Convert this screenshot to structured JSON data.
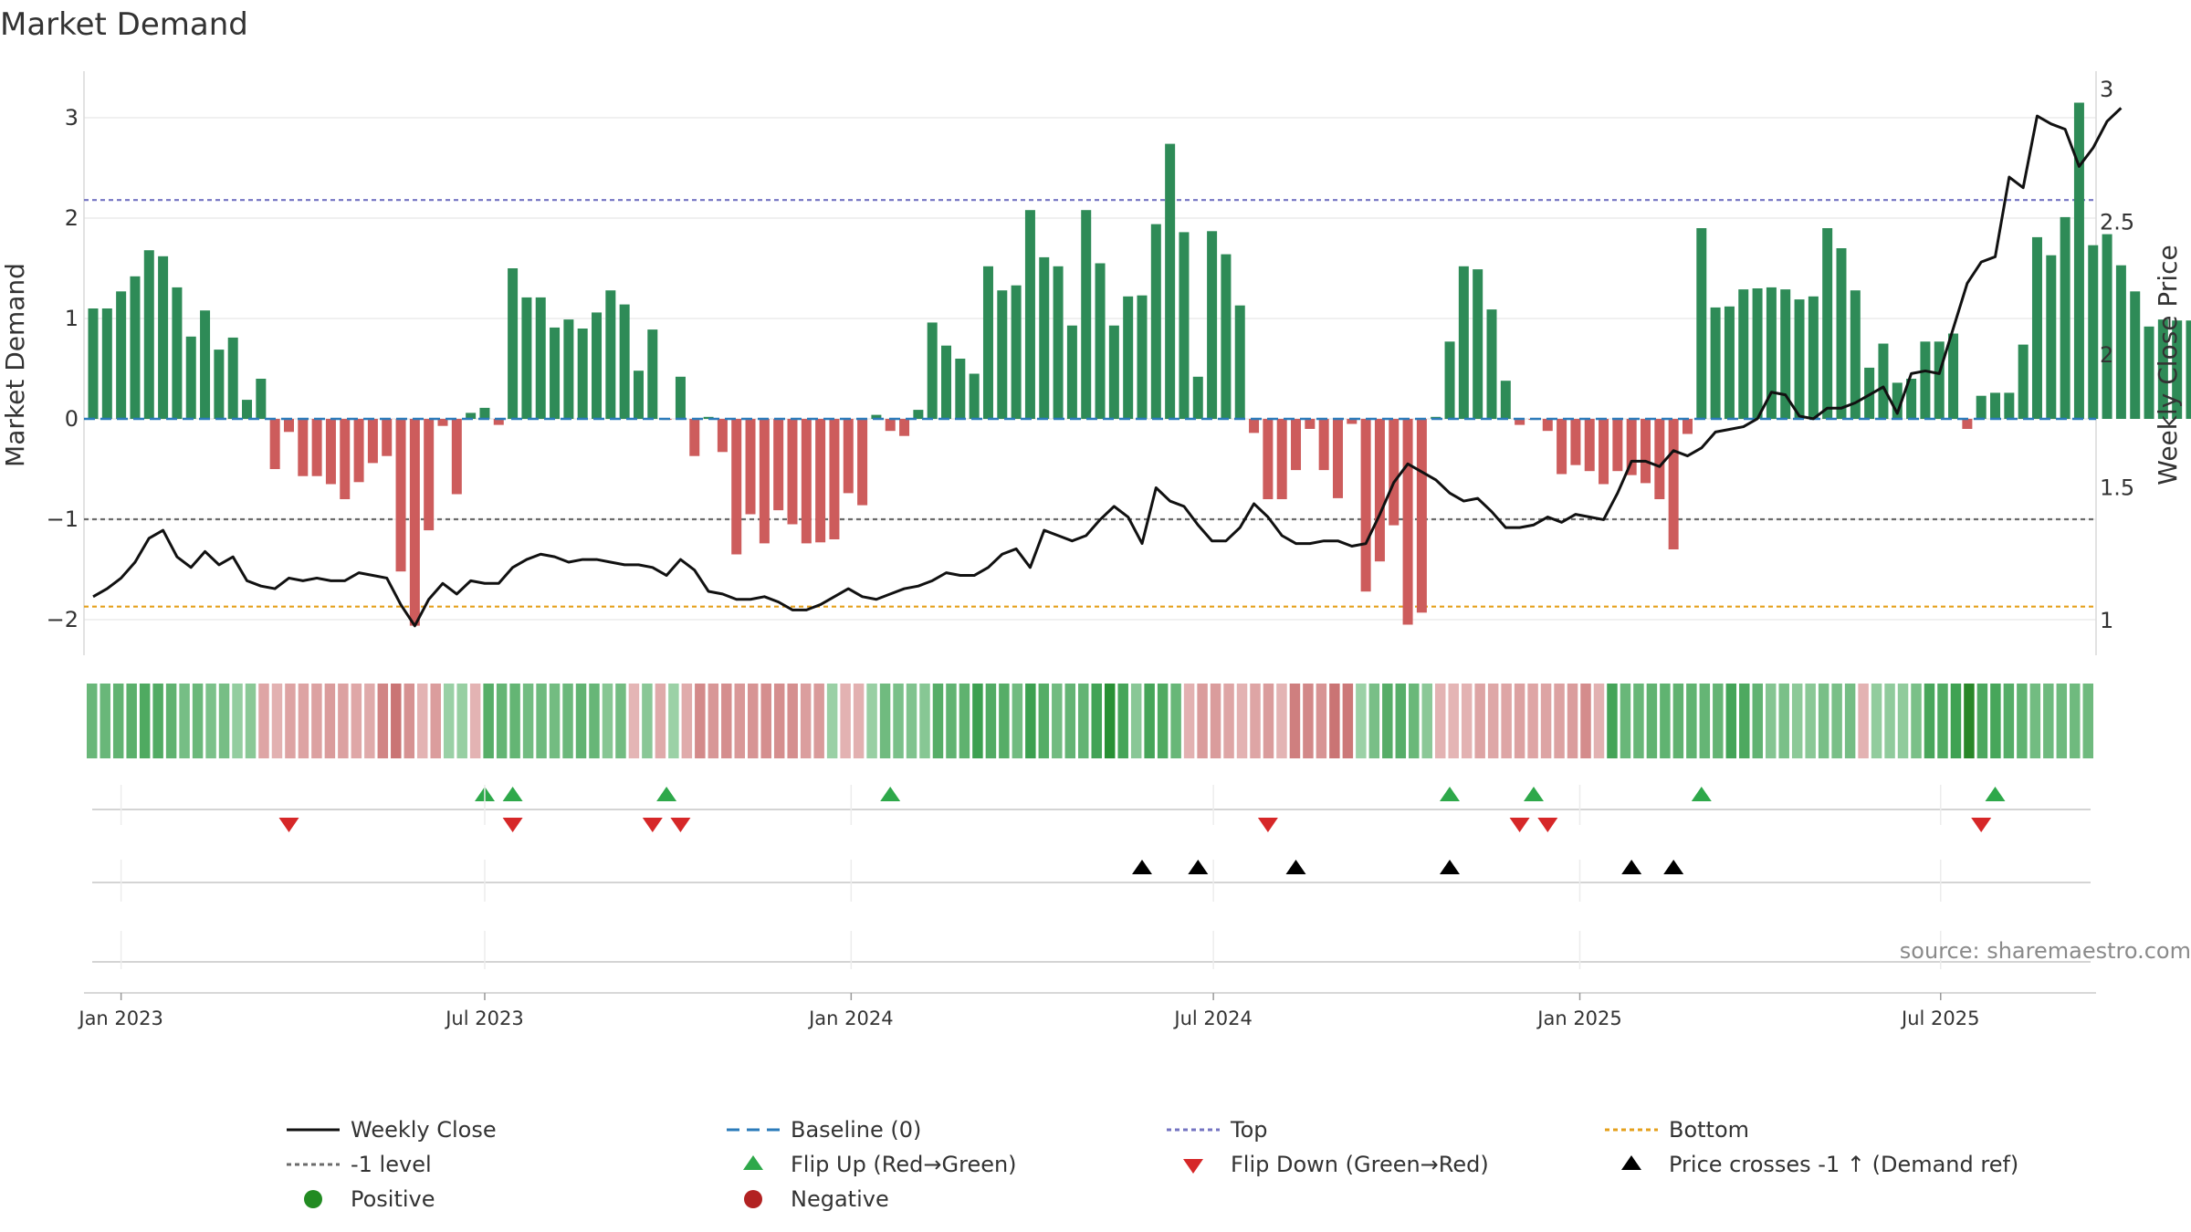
{
  "chart_data": {
    "type": "bar",
    "title": "Market Demand",
    "ylabel": "Market Demand",
    "y2label": "Weekly Close Price",
    "source": "source: sharemaestro.com",
    "ylim": [
      -2.35,
      3.45
    ],
    "y2lim": [
      0.95,
      3.1
    ],
    "yticks": [
      -2,
      -1,
      0,
      1,
      2,
      3
    ],
    "ytick_labels": [
      "−2",
      "−1",
      "0",
      "1",
      "2",
      "3"
    ],
    "y2ticks": [
      1,
      1.5,
      2,
      2.5,
      3
    ],
    "y2tick_labels": [
      "1",
      "1.5",
      "2",
      "2.5",
      "3"
    ],
    "levels": {
      "top": 2.18,
      "minus_one": -1,
      "bottom": -1.87
    },
    "xticks": [
      {
        "label": "Jan 2023",
        "week": 2
      },
      {
        "label": "Jul 2023",
        "week": 28
      },
      {
        "label": "Jan 2024",
        "week": 54.2
      },
      {
        "label": "Jul 2024",
        "week": 80.1
      },
      {
        "label": "Jan 2025",
        "week": 106.3
      },
      {
        "label": "Jul 2025",
        "week": 132.1
      }
    ],
    "series": [
      {
        "name": "Market Demand",
        "values": [
          1.1,
          1.1,
          1.27,
          1.42,
          1.68,
          1.62,
          1.31,
          0.82,
          1.08,
          0.69,
          0.81,
          0.19,
          0.4,
          -0.5,
          -0.13,
          -0.57,
          -0.57,
          -0.65,
          -0.8,
          -0.63,
          -0.44,
          -0.37,
          -1.52,
          -2.06,
          -1.11,
          -0.07,
          -0.75,
          0.06,
          0.11,
          -0.06,
          1.5,
          1.21,
          1.21,
          0.91,
          0.99,
          0.9,
          1.06,
          1.28,
          1.14,
          0.48,
          0.89,
          -0.01,
          0.42,
          -0.37,
          0.02,
          -0.33,
          -1.35,
          -0.95,
          -1.24,
          -0.91,
          -1.05,
          -1.24,
          -1.23,
          -1.2,
          -0.74,
          -0.86,
          0.04,
          -0.12,
          -0.17,
          0.09,
          0.96,
          0.73,
          0.6,
          0.45,
          1.52,
          1.28,
          1.33,
          2.08,
          1.61,
          1.52,
          0.93,
          2.08,
          1.55,
          0.93,
          1.22,
          1.23,
          1.94,
          2.74,
          1.86,
          0.42,
          1.87,
          1.64,
          1.13,
          -0.14,
          -0.8,
          -0.8,
          -0.51,
          -0.1,
          -0.51,
          -0.79,
          -0.05,
          -1.72,
          -1.42,
          -1.06,
          -2.05,
          -1.93,
          0.02,
          0.77,
          1.52,
          1.49,
          1.09,
          0.38,
          -0.06,
          -0.01,
          -0.12,
          -0.55,
          -0.46,
          -0.52,
          -0.65,
          -0.52,
          -0.56,
          -0.64,
          -0.8,
          -1.3,
          -0.15,
          1.9,
          1.11,
          1.12,
          1.29,
          1.3,
          1.31,
          1.29,
          1.19,
          1.22,
          1.9,
          1.7,
          1.28,
          0.51,
          0.75,
          0.36,
          0.4,
          0.77,
          0.77,
          0.85,
          -0.1,
          0.23,
          0.26,
          0.26,
          0.74,
          1.81,
          1.63,
          2.01,
          3.15,
          1.73,
          1.84,
          1.53,
          1.27,
          0.92,
          0.99,
          0.98,
          0.98
        ]
      },
      {
        "name": "Weekly Close",
        "values": [
          1.09,
          1.12,
          1.16,
          1.22,
          1.31,
          1.34,
          1.24,
          1.2,
          1.26,
          1.21,
          1.24,
          1.15,
          1.13,
          1.12,
          1.16,
          1.15,
          1.16,
          1.15,
          1.15,
          1.18,
          1.17,
          1.16,
          1.06,
          0.98,
          1.08,
          1.14,
          1.1,
          1.15,
          1.14,
          1.14,
          1.2,
          1.23,
          1.25,
          1.24,
          1.22,
          1.23,
          1.23,
          1.22,
          1.21,
          1.21,
          1.2,
          1.17,
          1.23,
          1.19,
          1.11,
          1.1,
          1.08,
          1.08,
          1.09,
          1.07,
          1.04,
          1.04,
          1.06,
          1.09,
          1.12,
          1.09,
          1.08,
          1.1,
          1.12,
          1.13,
          1.15,
          1.18,
          1.17,
          1.17,
          1.2,
          1.25,
          1.27,
          1.2,
          1.34,
          1.32,
          1.3,
          1.32,
          1.38,
          1.43,
          1.39,
          1.29,
          1.5,
          1.45,
          1.43,
          1.36,
          1.3,
          1.3,
          1.35,
          1.44,
          1.39,
          1.32,
          1.29,
          1.29,
          1.3,
          1.3,
          1.28,
          1.29,
          1.4,
          1.52,
          1.59,
          1.56,
          1.53,
          1.48,
          1.45,
          1.46,
          1.41,
          1.35,
          1.35,
          1.36,
          1.39,
          1.37,
          1.4,
          1.39,
          1.38,
          1.48,
          1.6,
          1.6,
          1.58,
          1.64,
          1.62,
          1.65,
          1.71,
          1.72,
          1.73,
          1.76,
          1.86,
          1.85,
          1.77,
          1.76,
          1.8,
          1.8,
          1.82,
          1.85,
          1.88,
          1.78,
          1.93,
          1.94,
          1.93,
          2.1,
          2.27,
          2.35,
          2.37,
          2.67,
          2.63,
          2.9,
          2.87,
          2.85,
          2.71,
          2.78,
          2.88,
          2.93
        ]
      }
    ],
    "heat_strip_weeks": 152,
    "flip_up_weeks": [
      28,
      30,
      41,
      57,
      97,
      103,
      115,
      136
    ],
    "flip_down_weeks": [
      14,
      30,
      40,
      42,
      84,
      102,
      104,
      135
    ],
    "price_cross_weeks": [
      75,
      79,
      86,
      97,
      110,
      113
    ],
    "legend": [
      {
        "label": "Weekly Close",
        "symbol": "line",
        "color": "#111111"
      },
      {
        "label": "Baseline (0)",
        "symbol": "dash",
        "color": "#2b7bba"
      },
      {
        "label": "Top",
        "symbol": "dot",
        "color": "#7474c2"
      },
      {
        "label": "Bottom",
        "symbol": "dot",
        "color": "#e5a01c"
      },
      {
        "label": "-1 level",
        "symbol": "dot",
        "color": "#6b6b6b"
      },
      {
        "label": "Flip Up (Red→Green)",
        "symbol": "tri-up",
        "color": "#2ea84a"
      },
      {
        "label": "Flip Down (Green→Red)",
        "symbol": "tri-down",
        "color": "#d62728"
      },
      {
        "label": "Price crosses -1 ↑ (Demand ref)",
        "symbol": "tri-up",
        "color": "#000000"
      },
      {
        "label": "Positive",
        "symbol": "circle",
        "color": "#228b22"
      },
      {
        "label": "Negative",
        "symbol": "circle",
        "color": "#b22222"
      }
    ],
    "colors": {
      "positive_bar": "#2e8b57",
      "negative_bar": "#cd5c5c",
      "close_line": "#111111",
      "baseline": "#2b7bba",
      "top_level": "#7474c2",
      "minus_one_level": "#6b6b6b",
      "bottom_level": "#e5a01c",
      "flip_up": "#2ea84a",
      "flip_down": "#d62728",
      "price_cross": "#000000",
      "text": "#333333",
      "grid": "#e6e6e6"
    }
  }
}
